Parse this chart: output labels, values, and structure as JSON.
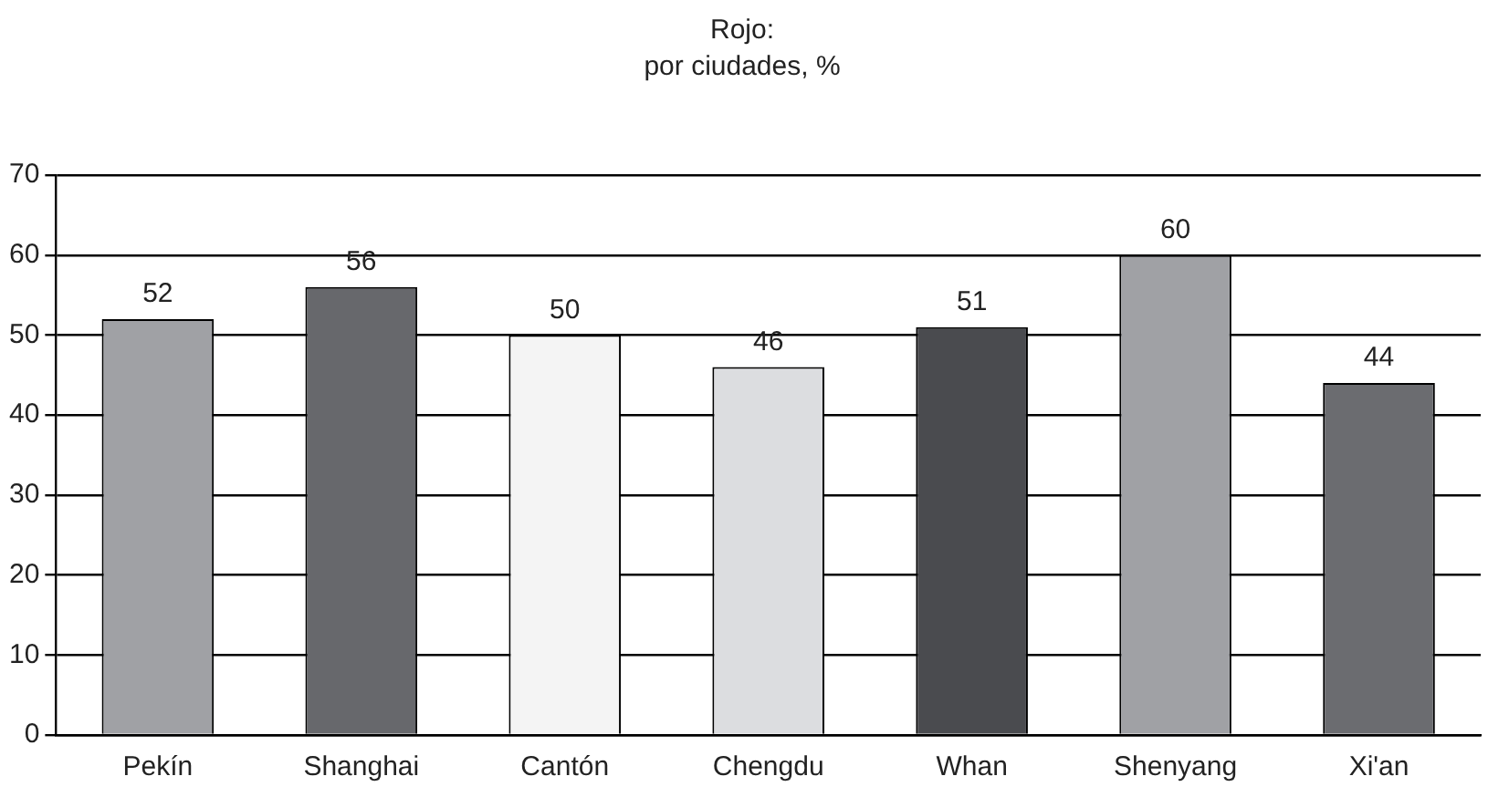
{
  "chart_data": {
    "type": "bar",
    "title": "Rojo:",
    "subtitle": "por ciudades, %",
    "categories": [
      "Pekín",
      "Shanghai",
      "Cantón",
      "Chengdu",
      "Whan",
      "Shenyang",
      "Xi'an"
    ],
    "values": [
      52,
      56,
      50,
      46,
      51,
      60,
      44
    ],
    "colors": [
      "#a0a1a5",
      "#67686c",
      "#f4f4f4",
      "#dcdde0",
      "#4a4b4f",
      "#a0a1a5",
      "#6b6c70"
    ],
    "ylim": [
      0,
      70
    ],
    "yticks": [
      0,
      10,
      20,
      30,
      40,
      50,
      60,
      70
    ],
    "grid": "y",
    "data_labels": true,
    "legend": false
  }
}
